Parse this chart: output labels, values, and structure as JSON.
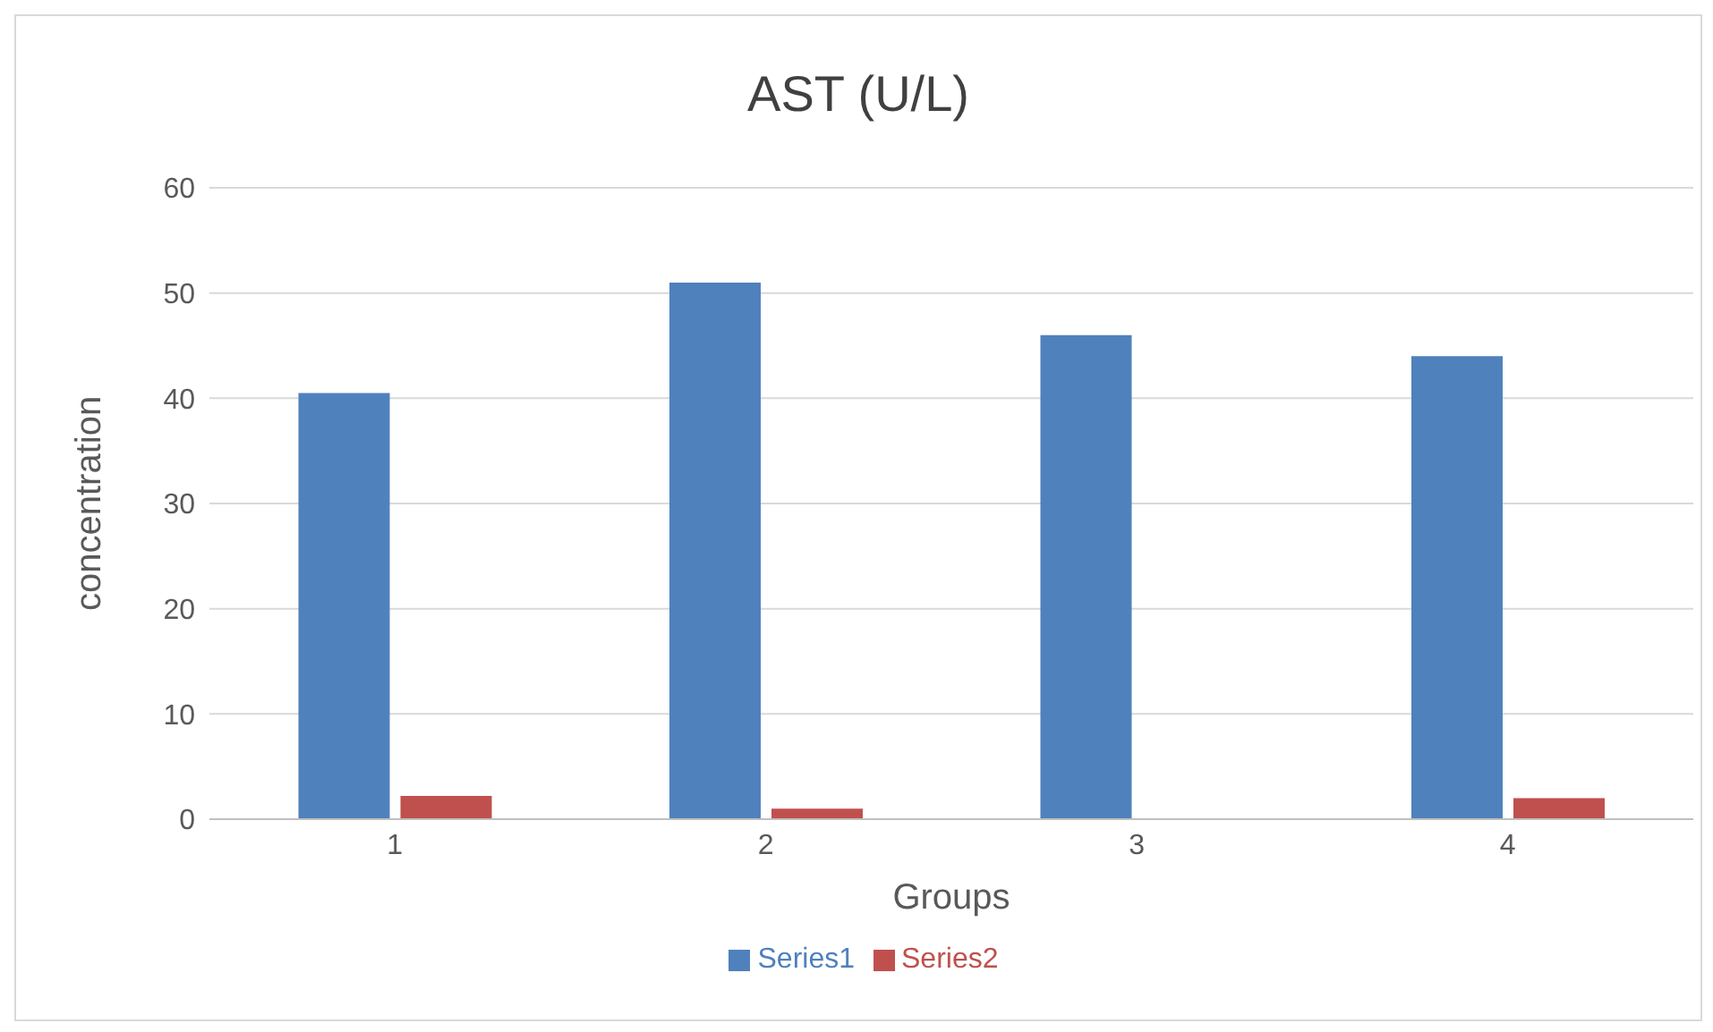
{
  "chart_data": {
    "type": "bar",
    "title": "AST (U/L)",
    "xlabel": "Groups",
    "ylabel": "concentration",
    "categories": [
      "1",
      "2",
      "3",
      "4"
    ],
    "series": [
      {
        "name": "Series1",
        "color": "#4f81bd",
        "values": [
          40.5,
          51,
          46,
          44
        ]
      },
      {
        "name": "Series2",
        "color": "#c0504d",
        "values": [
          2.2,
          1,
          0,
          2
        ]
      }
    ],
    "ylim": [
      0,
      60
    ],
    "yticks": [
      0,
      10,
      20,
      30,
      40,
      50,
      60
    ],
    "grid": "y",
    "legend": "bottom"
  }
}
